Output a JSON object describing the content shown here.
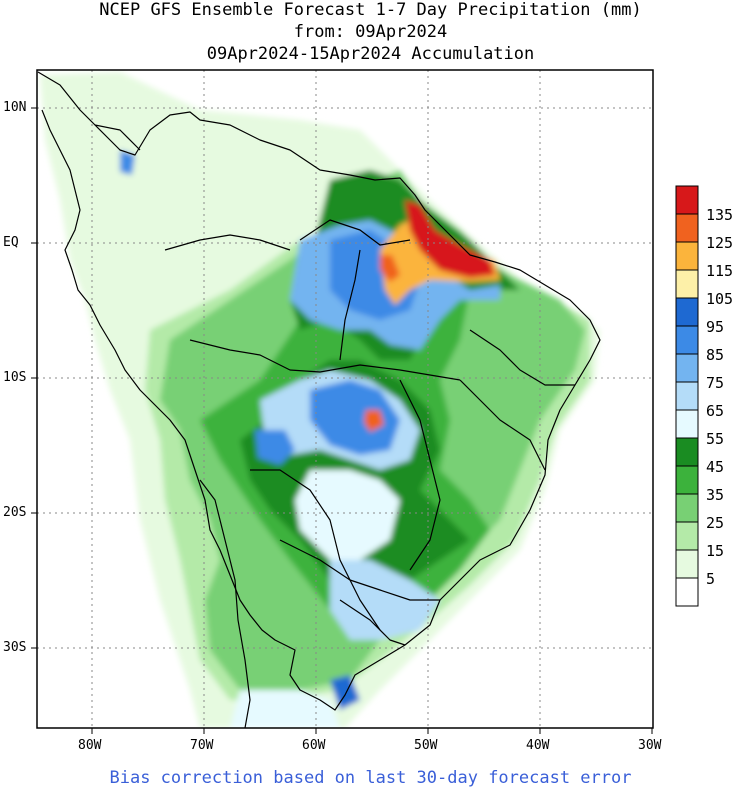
{
  "title": {
    "line1": "NCEP GFS Ensemble Forecast 1-7 Day Precipitation (mm)",
    "line2": "from: 09Apr2024",
    "line3": "09Apr2024-15Apr2024 Accumulation"
  },
  "footer": "Bias correction based on last 30-day forecast error",
  "lat_labels": [
    "10N",
    "EQ",
    "10S",
    "20S",
    "30S"
  ],
  "lon_labels": [
    "80W",
    "70W",
    "60W",
    "50W",
    "40W",
    "30W"
  ],
  "legend": {
    "labels": [
      "135",
      "125",
      "115",
      "105",
      "95",
      "85",
      "75",
      "65",
      "55",
      "45",
      "35",
      "25",
      "15",
      "5"
    ],
    "colors": [
      "#d7181a",
      "#f0621f",
      "#fbb43c",
      "#fdf0a8",
      "#1e69d2",
      "#3c8ae6",
      "#73b4f0",
      "#b4dcf8",
      "#e6faff",
      "#1a8c22",
      "#3cb23c",
      "#78d074",
      "#b4eaa8",
      "#e6fae0",
      "#ffffff"
    ]
  }
}
